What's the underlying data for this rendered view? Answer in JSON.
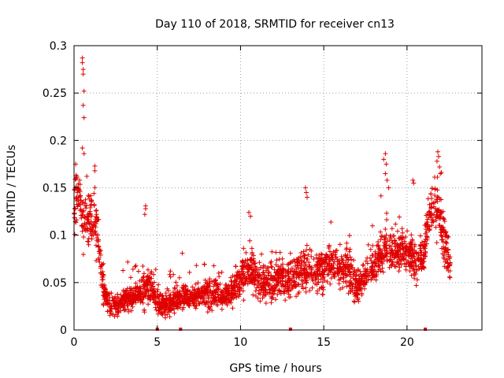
{
  "chart_data": {
    "type": "scatter",
    "title": "Day 110 of 2018, SRMTID for receiver cn13",
    "xlabel": "GPS time / hours",
    "ylabel": "SRMTID / TECUs",
    "xlim": [
      0,
      24.5
    ],
    "ylim": [
      0,
      0.3
    ],
    "grid": true,
    "legend": "none",
    "xticks": [
      {
        "value": 0,
        "label": "0"
      },
      {
        "value": 5,
        "label": "5"
      },
      {
        "value": 10,
        "label": "10"
      },
      {
        "value": 15,
        "label": "15"
      },
      {
        "value": 20,
        "label": "20"
      }
    ],
    "yticks": [
      {
        "value": 0,
        "label": "0"
      },
      {
        "value": 0.05,
        "label": "0.05"
      },
      {
        "value": 0.1,
        "label": "0.1"
      },
      {
        "value": 0.15,
        "label": "0.15"
      },
      {
        "value": 0.2,
        "label": "0.2"
      },
      {
        "value": 0.25,
        "label": "0.25"
      },
      {
        "value": 0.3,
        "label": "0.3"
      }
    ],
    "series": [
      {
        "name": "SRMTID",
        "marker": "+",
        "color": "#e00000",
        "trend": [
          [
            0.0,
            0.13
          ],
          [
            0.3,
            0.15
          ],
          [
            0.5,
            0.12
          ],
          [
            0.8,
            0.11
          ],
          [
            1.1,
            0.12
          ],
          [
            1.4,
            0.1
          ],
          [
            1.6,
            0.07
          ],
          [
            1.8,
            0.04
          ],
          [
            2.1,
            0.028
          ],
          [
            2.5,
            0.025
          ],
          [
            3.0,
            0.03
          ],
          [
            3.5,
            0.035
          ],
          [
            4.0,
            0.04
          ],
          [
            4.4,
            0.045
          ],
          [
            4.8,
            0.04
          ],
          [
            5.0,
            0.03
          ],
          [
            5.5,
            0.025
          ],
          [
            6.0,
            0.03
          ],
          [
            6.5,
            0.035
          ],
          [
            7.0,
            0.035
          ],
          [
            7.5,
            0.035
          ],
          [
            8.0,
            0.04
          ],
          [
            8.5,
            0.04
          ],
          [
            9.0,
            0.035
          ],
          [
            9.5,
            0.04
          ],
          [
            10.0,
            0.055
          ],
          [
            10.5,
            0.065
          ],
          [
            11.0,
            0.055
          ],
          [
            11.5,
            0.05
          ],
          [
            12.0,
            0.05
          ],
          [
            12.5,
            0.055
          ],
          [
            13.0,
            0.05
          ],
          [
            13.5,
            0.065
          ],
          [
            14.0,
            0.06
          ],
          [
            14.5,
            0.06
          ],
          [
            15.0,
            0.065
          ],
          [
            15.5,
            0.07
          ],
          [
            16.0,
            0.065
          ],
          [
            16.5,
            0.06
          ],
          [
            17.0,
            0.045
          ],
          [
            17.3,
            0.05
          ],
          [
            17.8,
            0.065
          ],
          [
            18.2,
            0.075
          ],
          [
            18.7,
            0.085
          ],
          [
            19.2,
            0.08
          ],
          [
            19.7,
            0.085
          ],
          [
            20.2,
            0.08
          ],
          [
            20.7,
            0.07
          ],
          [
            21.0,
            0.08
          ],
          [
            21.3,
            0.12
          ],
          [
            21.7,
            0.13
          ],
          [
            22.0,
            0.12
          ],
          [
            22.3,
            0.09
          ],
          [
            22.6,
            0.07
          ]
        ],
        "spread": 0.02,
        "count": 2600,
        "spikes": [
          [
            0.5,
            0.287
          ],
          [
            0.5,
            0.282
          ],
          [
            0.55,
            0.275
          ],
          [
            0.55,
            0.27
          ],
          [
            0.6,
            0.252
          ],
          [
            0.55,
            0.237
          ],
          [
            0.6,
            0.224
          ],
          [
            0.5,
            0.192
          ],
          [
            0.6,
            0.186
          ],
          [
            0.1,
            0.175
          ],
          [
            1.25,
            0.173
          ],
          [
            1.25,
            0.168
          ],
          [
            4.3,
            0.131
          ],
          [
            4.3,
            0.128
          ],
          [
            4.25,
            0.122
          ],
          [
            6.5,
            0.081
          ],
          [
            13.9,
            0.15
          ],
          [
            13.95,
            0.145
          ],
          [
            14.0,
            0.14
          ],
          [
            18.7,
            0.186
          ],
          [
            18.6,
            0.18
          ],
          [
            18.75,
            0.175
          ],
          [
            18.7,
            0.165
          ],
          [
            18.8,
            0.158
          ],
          [
            18.9,
            0.15
          ],
          [
            20.35,
            0.158
          ],
          [
            20.4,
            0.155
          ],
          [
            21.85,
            0.188
          ],
          [
            21.9,
            0.183
          ],
          [
            21.8,
            0.178
          ],
          [
            21.95,
            0.172
          ],
          [
            22.0,
            0.165
          ],
          [
            10.5,
            0.124
          ],
          [
            10.6,
            0.12
          ]
        ],
        "zero_points": [
          5.0,
          6.4,
          13.0,
          21.1
        ]
      }
    ]
  }
}
